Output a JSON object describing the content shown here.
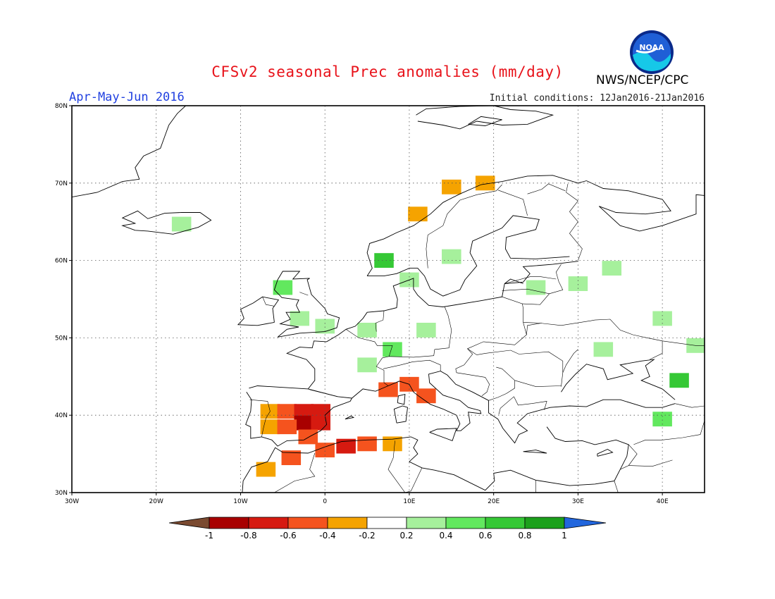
{
  "title": "CFSv2 seasonal Prec anomalies (mm/day)",
  "season": "Apr-May-Jun 2016",
  "initial_conditions": "Initial conditions: 12Jan2016-21Jan2016",
  "agency": "NWS/NCEP/CPC",
  "logo_text": "NOAA",
  "map": {
    "lon_range": [
      -30,
      45
    ],
    "lat_range": [
      30,
      80
    ],
    "lon_ticks": [
      "30W",
      "20W",
      "10W",
      "0",
      "10E",
      "20E",
      "30E",
      "40E"
    ],
    "lat_ticks": [
      "30N",
      "40N",
      "50N",
      "60N",
      "70N",
      "80N"
    ],
    "grid": "dotted",
    "anomaly_cells": [
      {
        "lon": -6.5,
        "lat": 40.5,
        "class": "dry1"
      },
      {
        "lon": -4.5,
        "lat": 40.5,
        "class": "dry2"
      },
      {
        "lon": -2.5,
        "lat": 40.5,
        "class": "dry3"
      },
      {
        "lon": -0.5,
        "lat": 40.5,
        "class": "dry3"
      },
      {
        "lon": -2.5,
        "lat": 39,
        "class": "dry4"
      },
      {
        "lon": -0.5,
        "lat": 39,
        "class": "dry3"
      },
      {
        "lon": -6.5,
        "lat": 38.5,
        "class": "dry1"
      },
      {
        "lon": -4.5,
        "lat": 38.5,
        "class": "dry2"
      },
      {
        "lon": -2,
        "lat": 37.2,
        "class": "dry2"
      },
      {
        "lon": 0,
        "lat": 35.5,
        "class": "dry2"
      },
      {
        "lon": 2.5,
        "lat": 36,
        "class": "dry3"
      },
      {
        "lon": 5,
        "lat": 36.3,
        "class": "dry2"
      },
      {
        "lon": 8,
        "lat": 36.3,
        "class": "dry1"
      },
      {
        "lon": -4,
        "lat": 34.5,
        "class": "dry2"
      },
      {
        "lon": -7,
        "lat": 33,
        "class": "dry1"
      },
      {
        "lon": 7.5,
        "lat": 43.3,
        "class": "dry2"
      },
      {
        "lon": 10,
        "lat": 44,
        "class": "dry2"
      },
      {
        "lon": 12,
        "lat": 42.5,
        "class": "dry2"
      },
      {
        "lon": 15,
        "lat": 69.5,
        "class": "dry1"
      },
      {
        "lon": 19,
        "lat": 70,
        "class": "dry1"
      },
      {
        "lon": 11,
        "lat": 66,
        "class": "dry1"
      },
      {
        "lon": -17,
        "lat": 64.7,
        "class": "wet1"
      },
      {
        "lon": -5,
        "lat": 56.5,
        "class": "wet2"
      },
      {
        "lon": -3,
        "lat": 52.5,
        "class": "wet1"
      },
      {
        "lon": 0,
        "lat": 51.5,
        "class": "wet1"
      },
      {
        "lon": 5,
        "lat": 51,
        "class": "wet1"
      },
      {
        "lon": 8,
        "lat": 48.5,
        "class": "wet2"
      },
      {
        "lon": 12,
        "lat": 51,
        "class": "wet1"
      },
      {
        "lon": 7,
        "lat": 60,
        "class": "wet3"
      },
      {
        "lon": 10,
        "lat": 57.5,
        "class": "wet1"
      },
      {
        "lon": 15,
        "lat": 60.5,
        "class": "wet1"
      },
      {
        "lon": 25,
        "lat": 56.5,
        "class": "wet1"
      },
      {
        "lon": 30,
        "lat": 57,
        "class": "wet1"
      },
      {
        "lon": 34,
        "lat": 59,
        "class": "wet1"
      },
      {
        "lon": 40,
        "lat": 52.5,
        "class": "wet1"
      },
      {
        "lon": 42,
        "lat": 44.5,
        "class": "wet3"
      },
      {
        "lon": 40,
        "lat": 39.5,
        "class": "wet2"
      },
      {
        "lon": 33,
        "lat": 48.5,
        "class": "wet1"
      },
      {
        "lon": 44,
        "lat": 49,
        "class": "wet1"
      },
      {
        "lon": 5,
        "lat": 46.5,
        "class": "wet1"
      }
    ]
  },
  "colorbar": {
    "labels": [
      "-1",
      "-0.8",
      "-0.6",
      "-0.4",
      "-0.2",
      "0.2",
      "0.4",
      "0.6",
      "0.8",
      "1"
    ],
    "colors": {
      "below": "#7a4a30",
      "dry4": "#a80000",
      "dry3": "#d61a10",
      "dry2": "#f5531e",
      "dry1": "#f5a300",
      "neutral": "#ffffff",
      "wet1": "#a6f09c",
      "wet2": "#62e85e",
      "wet3": "#35c835",
      "wet4": "#1ca01c",
      "above": "#2266dd"
    }
  }
}
